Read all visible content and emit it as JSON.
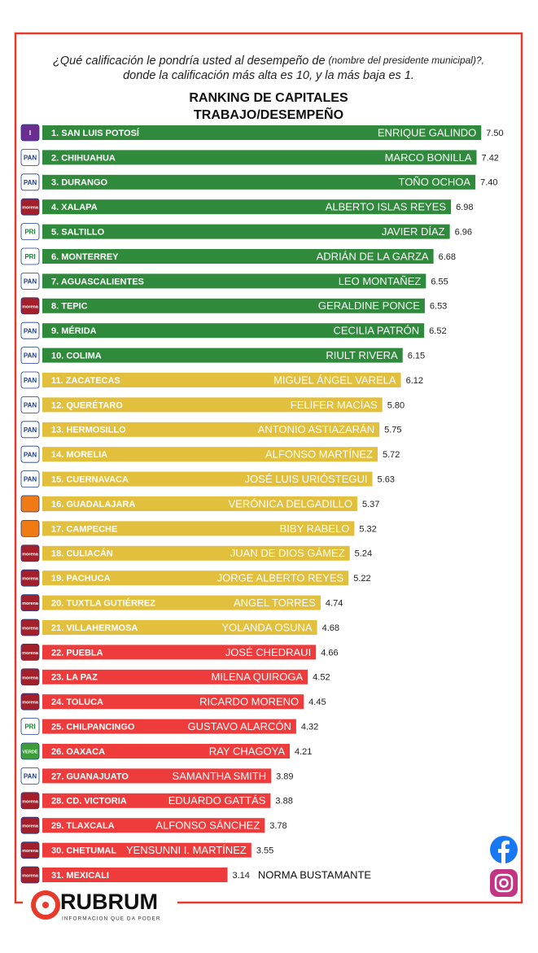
{
  "chart_data": {
    "type": "bar",
    "orientation": "horizontal",
    "title_lead": "¿Qué calificación le pondría usted al desempeño de",
    "title_note": "(nombre del presidente municipal)?,",
    "title_tail": "donde la calificación más alta es 10, y la más baja es 1.",
    "subtitle": [
      "RANKING DE CAPITALES",
      "TRABAJO/DESEMPEÑO"
    ],
    "categories": [
      "1. SAN LUIS POTOSÍ",
      "2. CHIHUAHUA",
      "3. DURANGO",
      "4. XALAPA",
      "5. SALTILLO",
      "6. MONTERREY",
      "7. AGUASCALIENTES",
      "8. TEPIC",
      "9. MÉRIDA",
      "10. COLIMA",
      "11. ZACATECAS",
      "12. QUERÉTARO",
      "13. HERMOSILLO",
      "14. MORELIA",
      "15. CUERNAVACA",
      "16. GUADALAJARA",
      "17. CAMPECHE",
      "18. CULIACÁN",
      "19. PACHUCA",
      "20. TUXTLA GUTIÉRREZ",
      "21. VILLAHERMOSA",
      "22. PUEBLA",
      "23. LA PAZ",
      "24. TOLUCA",
      "25. CHILPANCINGO",
      "26. OAXACA",
      "27. GUANAJUATO",
      "28. CD. VICTORIA",
      "29. TLAXCALA",
      "30. CHETUMAL",
      "31. MEXICALI"
    ],
    "names": [
      "ENRIQUE GALINDO",
      "MARCO BONILLA",
      "TOÑO OCHOA",
      "ALBERTO ISLAS REYES",
      "JAVIER DÍAZ",
      "ADRIÁN DE LA GARZA",
      "LEO MONTAÑEZ",
      "GERALDINE PONCE",
      "CECILIA PATRÓN",
      "RIULT RIVERA",
      "MIGUEL ÁNGEL VARELA",
      "FELIFER MACÍAS",
      "ANTONIO ASTIAZARÁN",
      "ALFONSO MARTÍNEZ",
      "JOSÉ LUIS URIÓSTEGUI",
      "VERÓNICA DELGADILLO",
      "BIBY RABELO",
      "JUAN DE DIOS GÁMEZ",
      "JORGE ALBERTO REYES",
      "ANGEL TORRES",
      "YOLANDA OSUNA",
      "JOSÉ CHEDRAUI",
      "MILENA QUIROGA",
      "RICARDO MORENO",
      "GUSTAVO ALARCÓN",
      "RAY CHAGOYA",
      "SAMANTHA SMITH",
      "EDUARDO GATTÁS",
      "ALFONSO SÁNCHEZ",
      "YENSUNNI I. MARTÍNEZ",
      "NORMA BUSTAMANTE"
    ],
    "values": [
      7.5,
      7.42,
      7.4,
      6.98,
      6.96,
      6.68,
      6.55,
      6.53,
      6.52,
      6.15,
      6.12,
      5.8,
      5.75,
      5.72,
      5.63,
      5.37,
      5.32,
      5.24,
      5.22,
      4.74,
      4.68,
      4.66,
      4.52,
      4.45,
      4.32,
      4.21,
      3.89,
      3.88,
      3.78,
      3.55,
      3.14
    ],
    "value_labels": [
      "7.50",
      "7.42",
      "7.40",
      "6.98",
      "6.96",
      "6.68",
      "6.55",
      "6.53",
      "6.52",
      "6.15",
      "6.12",
      "5.80",
      "5.75",
      "5.72",
      "5.63",
      "5.37",
      "5.32",
      "5.24",
      "5.22",
      "4.74",
      "4.68",
      "4.66",
      "4.52",
      "4.45",
      "4.32",
      "4.21",
      "3.89",
      "3.88",
      "3.78",
      "3.55",
      "3.14"
    ],
    "colors": [
      "#2f8a3c",
      "#2f8a3c",
      "#2f8a3c",
      "#2f8a3c",
      "#2f8a3c",
      "#2f8a3c",
      "#2f8a3c",
      "#2f8a3c",
      "#2f8a3c",
      "#2f8a3c",
      "#e2bf3c",
      "#e2bf3c",
      "#e2bf3c",
      "#e2bf3c",
      "#e2bf3c",
      "#e2bf3c",
      "#e2bf3c",
      "#e2bf3c",
      "#e2bf3c",
      "#e2bf3c",
      "#e2bf3c",
      "#ee3b3b",
      "#ee3b3b",
      "#ee3b3b",
      "#ee3b3b",
      "#ee3b3b",
      "#ee3b3b",
      "#ee3b3b",
      "#ee3b3b",
      "#ee3b3b",
      "#ee3b3b"
    ],
    "parties": [
      "I",
      "PAN",
      "PAN",
      "morena",
      "PRI",
      "PRI",
      "PAN",
      "morena",
      "PAN",
      "PAN",
      "PAN",
      "PAN",
      "PAN",
      "PAN",
      "PAN",
      null,
      null,
      "morena",
      "morena",
      "morena",
      "morena",
      "morena",
      "morena",
      "morena",
      "PRI",
      "VERDE",
      "PAN",
      "morena",
      "morena",
      "morena",
      "morena"
    ],
    "badge_colors": [
      "#6b2d8f",
      "#ffffff",
      "#ffffff",
      "#a3202a",
      "#ffffff",
      "#ffffff",
      "#ffffff",
      "#a3202a",
      "#ffffff",
      "#ffffff",
      "#ffffff",
      "#ffffff",
      "#ffffff",
      "#ffffff",
      "#ffffff",
      "#f07a13",
      "#f07a13",
      "#a3202a",
      "#a3202a",
      "#a3202a",
      "#a3202a",
      "#a3202a",
      "#a3202a",
      "#a3202a",
      "#ffffff",
      "#3e9d3a",
      "#ffffff",
      "#a3202a",
      "#a3202a",
      "#a3202a",
      "#a3202a"
    ],
    "badge_text_colors": [
      "#ffffff",
      "#1d3f8f",
      "#1d3f8f",
      "#ffffff",
      "#1d7a35",
      "#1d7a35",
      "#1d3f8f",
      "#ffffff",
      "#1d3f8f",
      "#1d3f8f",
      "#1d3f8f",
      "#1d3f8f",
      "#1d3f8f",
      "#1d3f8f",
      "#1d3f8f",
      "#ffffff",
      "#ffffff",
      "#ffffff",
      "#ffffff",
      "#ffffff",
      "#ffffff",
      "#ffffff",
      "#ffffff",
      "#ffffff",
      "#1d7a35",
      "#ffffff",
      "#1d3f8f",
      "#ffffff",
      "#ffffff",
      "#ffffff",
      "#ffffff"
    ],
    "xlim": [
      0,
      8
    ],
    "brand": "RUBRUM",
    "brand_tagline": "INFORMACIÓN QUE DA PODER"
  }
}
